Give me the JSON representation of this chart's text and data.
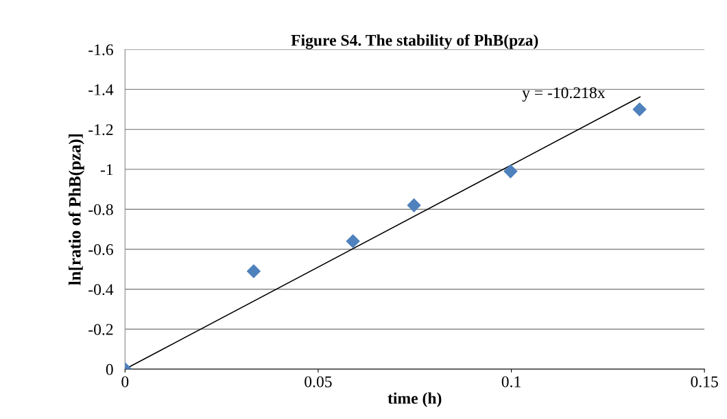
{
  "chart_data": {
    "type": "scatter",
    "title": "Figure S4. The stability of PhB(pza)",
    "xlabel": "time (h)",
    "ylabel": "ln[ratio of PhB(pza)]",
    "x": [
      0,
      0.0333,
      0.059,
      0.0748,
      0.0998,
      0.1332
    ],
    "series": [
      {
        "color": "#4f81bd",
        "marker": "diamond",
        "values": [
          0,
          -0.49,
          -0.64,
          -0.82,
          -0.99,
          -1.3
        ]
      },
      {
        "type": "line",
        "color": "#000000",
        "marker": "none",
        "x": [
          0,
          0.1333
        ],
        "values": [
          0,
          -1.362
        ]
      }
    ],
    "xlim": [
      0,
      0.15
    ],
    "xticks": [
      0,
      0.05,
      0.1,
      0.15
    ],
    "ylim": [
      0,
      -1.6
    ],
    "yticks": [
      0,
      -0.2,
      -0.4,
      -0.6,
      -0.8,
      -1,
      -1.2,
      -1.4,
      -1.6
    ],
    "grid": "y",
    "annotations": [
      "y = -10.218x"
    ]
  }
}
